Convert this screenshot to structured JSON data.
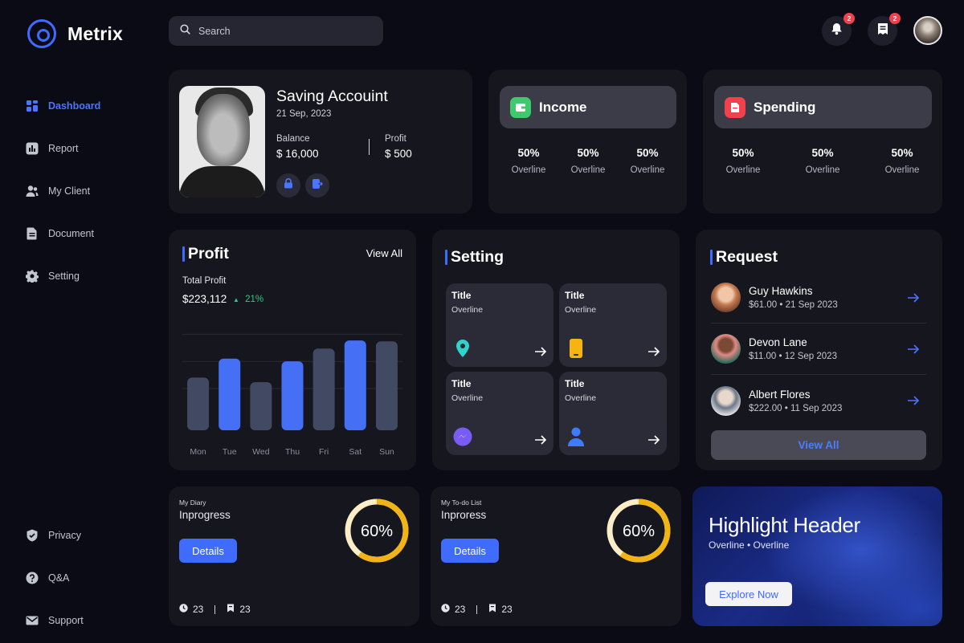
{
  "app": {
    "name": "Metrix"
  },
  "sidebar": {
    "items": [
      {
        "label": "Dashboard",
        "icon": "grid-icon",
        "active": true
      },
      {
        "label": "Report",
        "icon": "bar-chart-icon"
      },
      {
        "label": "My Client",
        "icon": "users-icon"
      },
      {
        "label": "Document",
        "icon": "document-icon"
      },
      {
        "label": "Setting",
        "icon": "gear-icon"
      }
    ],
    "bottom_items": [
      {
        "label": "Privacy",
        "icon": "shield-icon"
      },
      {
        "label": "Q&A",
        "icon": "question-icon"
      },
      {
        "label": "Support",
        "icon": "mail-icon"
      }
    ]
  },
  "topbar": {
    "search_placeholder": "Search",
    "notifications_badge": "2",
    "messages_badge": "2"
  },
  "saving": {
    "title": "Saving Accouint",
    "date": "21 Sep, 2023",
    "balance_label": "Balance",
    "balance_value": "$ 16,000",
    "profit_label": "Profit",
    "profit_value": "$ 500"
  },
  "income": {
    "title": "Income",
    "color": "#3ec96f",
    "stats": [
      {
        "value": "50%",
        "label": "Overline"
      },
      {
        "value": "50%",
        "label": "Overline"
      },
      {
        "value": "50%",
        "label": "Overline"
      }
    ]
  },
  "spending": {
    "title": "Spending",
    "color": "#f0414d",
    "stats": [
      {
        "value": "50%",
        "label": "Overline"
      },
      {
        "value": "50%",
        "label": "Overline"
      },
      {
        "value": "50%",
        "label": "Overline"
      }
    ]
  },
  "profit": {
    "title": "Profit",
    "view_all": "View All",
    "total_label": "Total Profit",
    "total_value": "$223,112",
    "change": "21%",
    "change_color": "#2fca82"
  },
  "chart_data": {
    "type": "bar",
    "categories": [
      "Mon",
      "Tue",
      "Wed",
      "Thu",
      "Fri",
      "Sat",
      "Sun"
    ],
    "values": [
      58,
      79,
      53,
      76,
      90,
      99,
      98
    ],
    "highlighted": [
      false,
      true,
      false,
      true,
      false,
      true,
      false
    ],
    "ylim": [
      0,
      115
    ],
    "grid": true,
    "colors": {
      "highlight": "#4570f5",
      "normal": "#424a63"
    }
  },
  "setting": {
    "title": "Setting",
    "tiles": [
      {
        "title": "Title",
        "overline": "Overline",
        "icon": "location-pin-icon",
        "color": "#2fd3c9"
      },
      {
        "title": "Title",
        "overline": "Overline",
        "icon": "phone-icon",
        "color": "#f5b40f"
      },
      {
        "title": "Title",
        "overline": "Overline",
        "icon": "messenger-icon",
        "color": "#7a5cf5"
      },
      {
        "title": "Title",
        "overline": "Overline",
        "icon": "user-icon",
        "color": "#3f7bff"
      }
    ]
  },
  "request": {
    "title": "Request",
    "items": [
      {
        "name": "Guy Hawkins",
        "meta": "$61.00 • 21 Sep 2023"
      },
      {
        "name": "Devon Lane",
        "meta": "$11.00 • 12 Sep 2023"
      },
      {
        "name": "Albert Flores",
        "meta": "$222.00 • 11 Sep 2023"
      }
    ],
    "view_all": "View All"
  },
  "progress_cards": [
    {
      "small": "My Diary",
      "title": "Inprogress",
      "button": "Details",
      "percent": "60%",
      "progress": 0.6,
      "count1": "23",
      "count2": "23"
    },
    {
      "small": "My To-do List",
      "title": "Inproress",
      "button": "Details",
      "percent": "60%",
      "progress": 0.6,
      "count1": "23",
      "count2": "23"
    }
  ],
  "highlight": {
    "title": "Highlight Header",
    "subtitle": "Overline • Overline",
    "button": "Explore Now"
  }
}
